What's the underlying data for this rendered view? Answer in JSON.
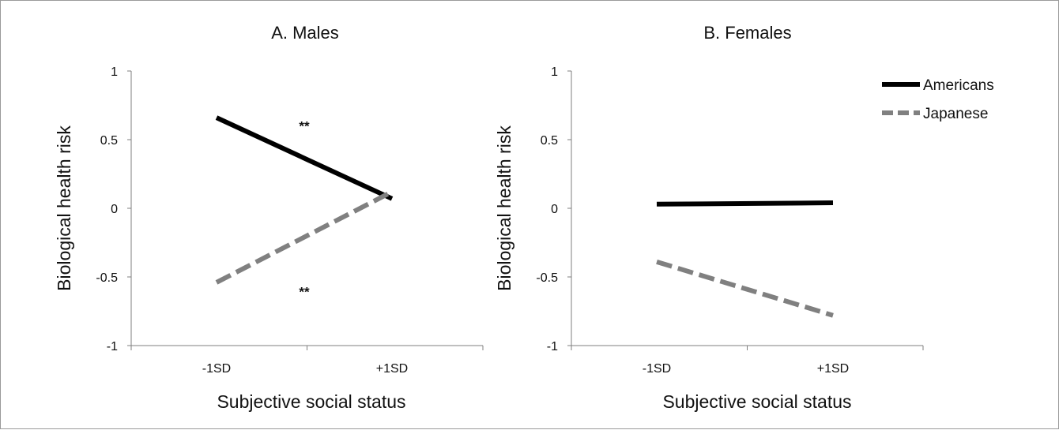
{
  "chart_data": [
    {
      "type": "line",
      "title": "A. Males",
      "xlabel": "Subjective social status",
      "ylabel": "Biological health risk",
      "categories": [
        "-1SD",
        "+1SD"
      ],
      "ylim": [
        -1,
        1
      ],
      "yticks": [
        "1",
        "0.5",
        "0",
        "-0.5",
        "-1"
      ],
      "series": [
        {
          "name": "Americans",
          "values": [
            0.66,
            0.07
          ],
          "color": "#000000",
          "dash": "solid"
        },
        {
          "name": "Japanese",
          "values": [
            -0.54,
            0.12
          ],
          "color": "#808080",
          "dash": "dashed"
        }
      ],
      "annotations": [
        {
          "text": "**",
          "series": "Americans"
        },
        {
          "text": "**",
          "series": "Japanese"
        }
      ]
    },
    {
      "type": "line",
      "title": "B. Females",
      "xlabel": "Subjective social status",
      "ylabel": "Biological health risk",
      "categories": [
        "-1SD",
        "+1SD"
      ],
      "ylim": [
        -1,
        1
      ],
      "yticks": [
        "1",
        "0.5",
        "0",
        "-0.5",
        "-1"
      ],
      "legend": {
        "placement": "top-right",
        "entries": [
          "Americans",
          "Japanese"
        ]
      },
      "series": [
        {
          "name": "Americans",
          "values": [
            0.03,
            0.04
          ],
          "color": "#000000",
          "dash": "solid"
        },
        {
          "name": "Japanese",
          "values": [
            -0.39,
            -0.78
          ],
          "color": "#808080",
          "dash": "dashed"
        }
      ]
    }
  ]
}
